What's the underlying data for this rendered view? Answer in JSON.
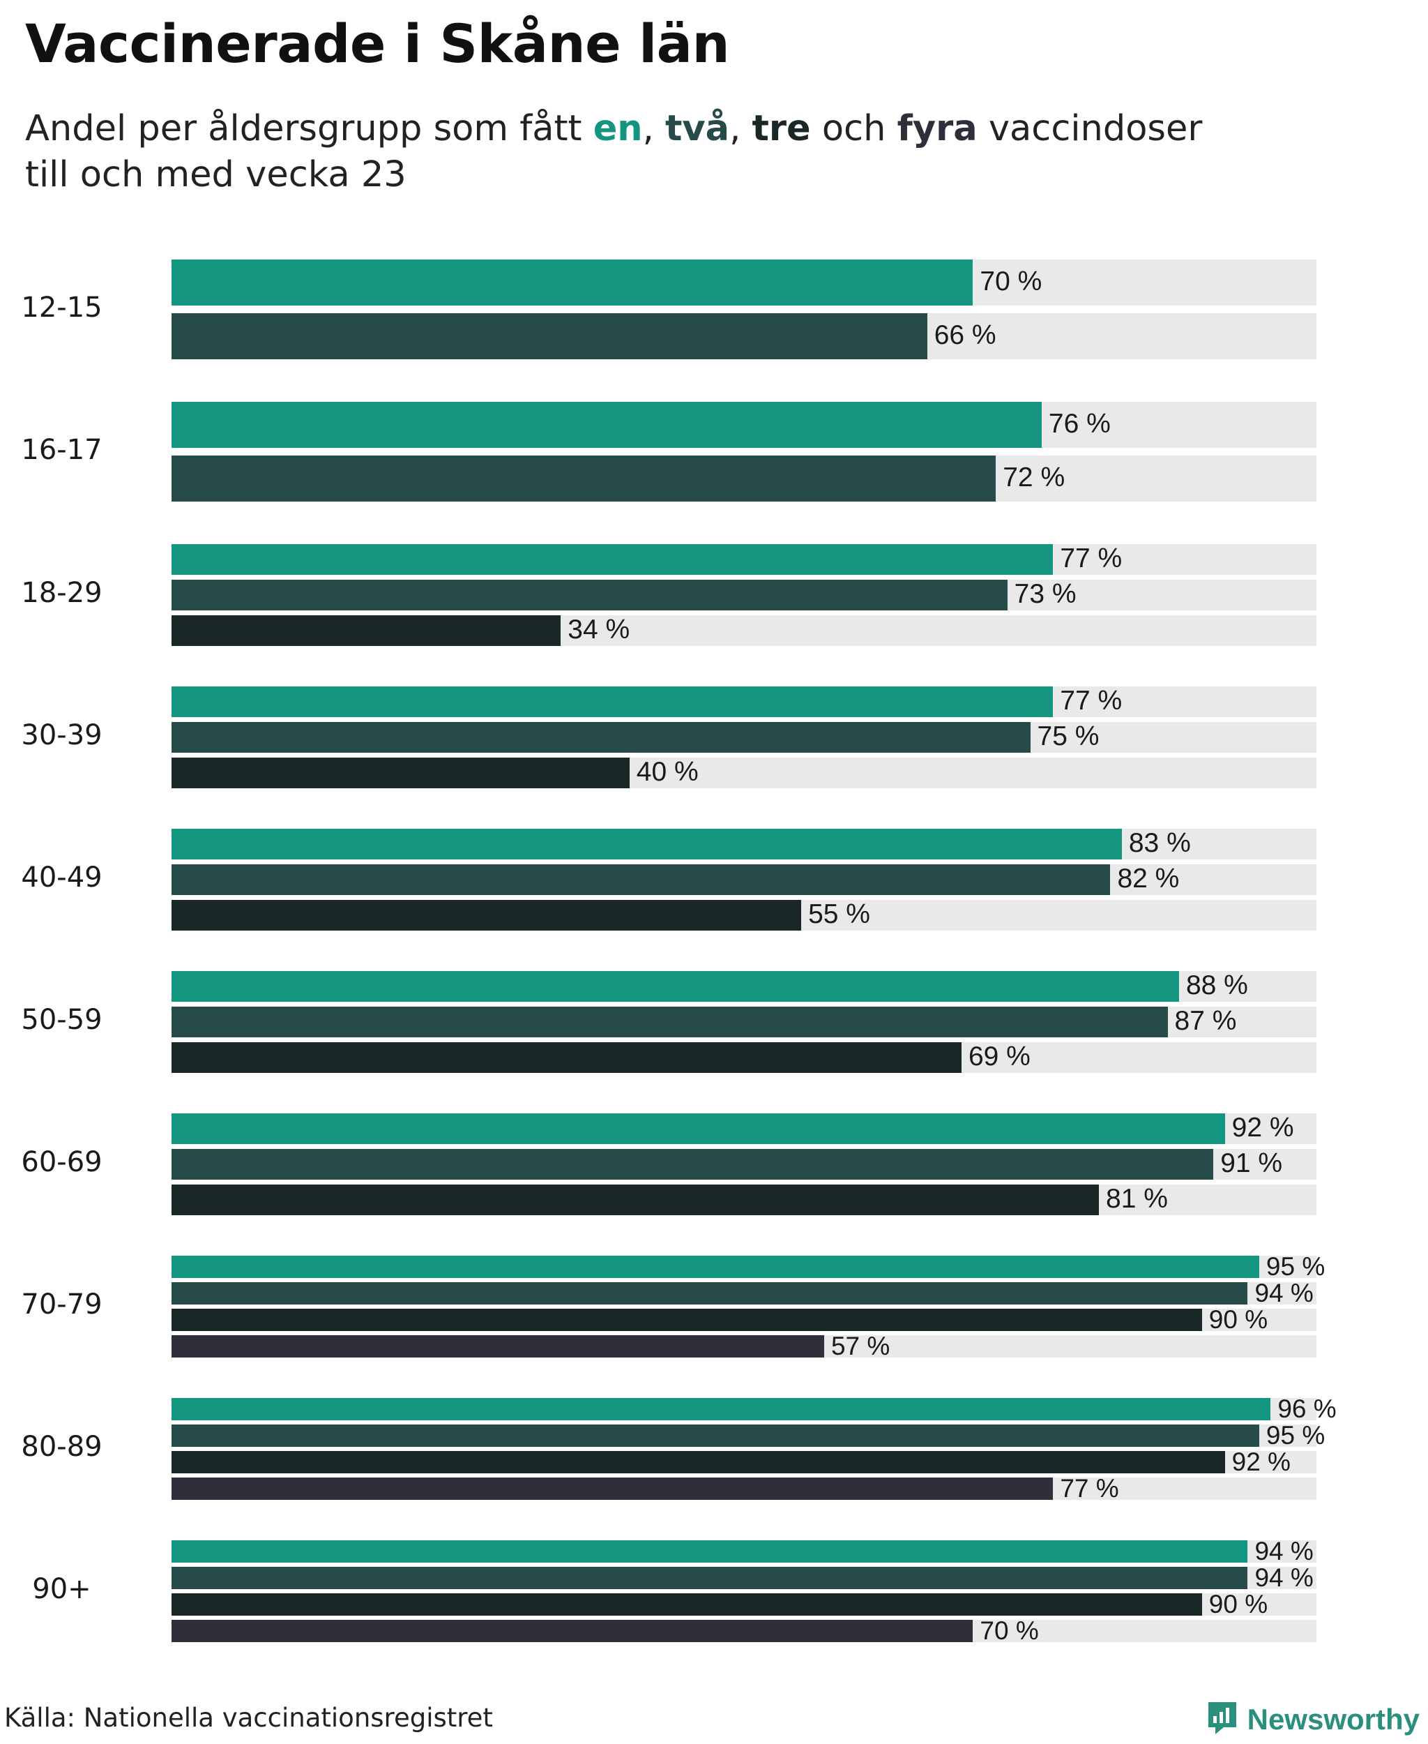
{
  "header": {
    "title": "Vaccinerade i Skåne län",
    "subtitle_prefix": "Andel per åldersgrupp som fått ",
    "dose_word_1": "en",
    "sep_1": ", ",
    "dose_word_2": "två",
    "sep_2": ", ",
    "dose_word_3": "tre",
    "sep_3": " och ",
    "dose_word_4": "fyra",
    "subtitle_suffix": " vaccindoser",
    "subtitle_line2": "till och med vecka 23"
  },
  "colors": {
    "dose_1": "#14957f",
    "dose_2": "#264b48",
    "dose_3": "#192826",
    "dose_4": "#2f2e3b",
    "track": "#e9e9e9",
    "brand": "#2a8f7d"
  },
  "chart_data": {
    "type": "bar",
    "orientation": "horizontal",
    "title": "Vaccinerade i Skåne län",
    "subtitle": "Andel per åldersgrupp som fått en, två, tre och fyra vaccindoser till och med vecka 23",
    "xlim": [
      0,
      100
    ],
    "value_suffix": " %",
    "categories": [
      "12-15",
      "16-17",
      "18-29",
      "30-39",
      "40-49",
      "50-59",
      "60-69",
      "70-79",
      "80-89",
      "90+"
    ],
    "series": [
      {
        "name": "en",
        "values": [
          70,
          76,
          77,
          77,
          83,
          88,
          92,
          95,
          96,
          94
        ]
      },
      {
        "name": "två",
        "values": [
          66,
          72,
          73,
          75,
          82,
          87,
          91,
          94,
          95,
          94
        ]
      },
      {
        "name": "tre",
        "values": [
          null,
          null,
          34,
          40,
          55,
          69,
          81,
          90,
          92,
          90
        ]
      },
      {
        "name": "fyra",
        "values": [
          null,
          null,
          null,
          null,
          null,
          null,
          null,
          57,
          77,
          70
        ]
      }
    ]
  },
  "footer": {
    "source": "Källa: Nationella vaccinationsregistret",
    "brand_name": "Newsworthy",
    "brand_icon": "newsworthy-logo-icon"
  }
}
